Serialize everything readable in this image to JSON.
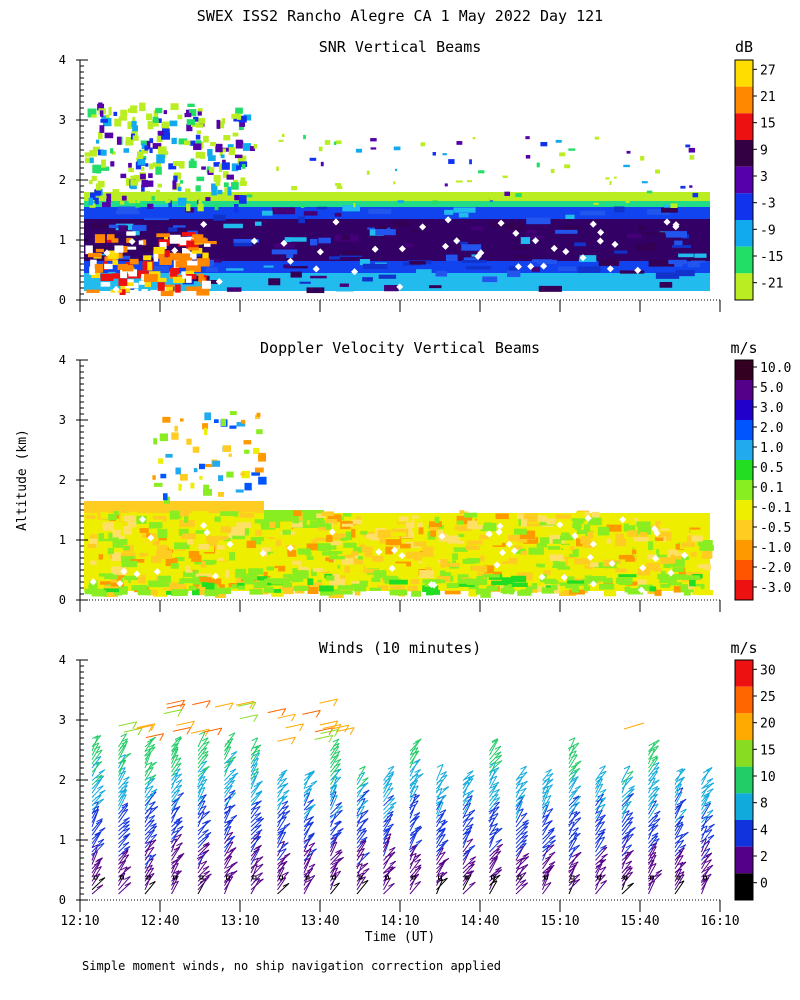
{
  "header": {
    "title": "SWEX ISS2 Rancho Alegre CA   1 May 2022 Day 121"
  },
  "shared": {
    "ylabel": "Altitude (km)",
    "xlabel": "Time (UT)",
    "footnote": "Simple moment winds, no ship navigation correction applied",
    "y_ticks": [
      "0",
      "1",
      "2",
      "3",
      "4"
    ],
    "x_ticks": [
      "12:10",
      "12:40",
      "13:10",
      "13:40",
      "14:10",
      "14:40",
      "15:10",
      "15:40",
      "16:10"
    ]
  },
  "chart_data": [
    {
      "id": "snr",
      "type": "heatmap",
      "title": "SNR Vertical Beams",
      "unit": "dB",
      "ylabel": "Altitude (km)",
      "ylim": [
        0,
        4
      ],
      "x_range": [
        "12:10",
        "16:10"
      ],
      "colorbar": {
        "ticks": [
          "27",
          "21",
          "15",
          "9",
          "3",
          "-3",
          "-9",
          "-15",
          "-21"
        ],
        "colors": [
          "#ffdd00",
          "#ff8800",
          "#ee1111",
          "#330044",
          "#5500aa",
          "#1133ee",
          "#11aaee",
          "#22dd66",
          "#bbee22"
        ]
      },
      "layers": [
        {
          "from_km": 0.15,
          "to_km": 0.45,
          "value_db": -9,
          "color": "#22bbee"
        },
        {
          "from_km": 0.45,
          "to_km": 0.65,
          "value_db": -3,
          "color": "#1144ee"
        },
        {
          "from_km": 0.65,
          "to_km": 1.35,
          "value_db": 5,
          "color": "#330066"
        },
        {
          "from_km": 1.35,
          "to_km": 1.55,
          "value_db": -3,
          "color": "#1144ee"
        },
        {
          "from_km": 1.55,
          "to_km": 1.65,
          "value_db": -12,
          "color": "#22dd88"
        },
        {
          "from_km": 1.65,
          "to_km": 1.8,
          "value_db": -21,
          "color": "#bbee22"
        }
      ]
    },
    {
      "id": "doppler",
      "type": "heatmap",
      "title": "Doppler Velocity Vertical Beams",
      "unit": "m/s",
      "ylabel": "Altitude (km)",
      "ylim": [
        0,
        4
      ],
      "x_range": [
        "12:10",
        "16:10"
      ],
      "colorbar": {
        "ticks": [
          "10.0",
          "5.0",
          "3.0",
          "2.0",
          "1.0",
          "0.5",
          "0.1",
          "-0.1",
          "-0.5",
          "-1.0",
          "-2.0",
          "-3.0"
        ],
        "colors": [
          "#330022",
          "#550088",
          "#2200cc",
          "#0055ff",
          "#22aaee",
          "#22dd22",
          "#88ee22",
          "#eeee00",
          "#ffcc22",
          "#ff9900",
          "#ff5500",
          "#ee1111"
        ]
      }
    },
    {
      "id": "winds",
      "type": "wind_barbs",
      "title": "Winds (10 minutes)",
      "unit": "m/s",
      "ylabel": "Altitude (km)",
      "xlabel": "Time (UT)",
      "ylim": [
        0,
        4
      ],
      "x_range": [
        "12:10",
        "16:10"
      ],
      "colorbar": {
        "ticks": [
          "30",
          "25",
          "20",
          "15",
          "10",
          "8",
          "4",
          "2",
          "0"
        ],
        "colors": [
          "#ee1111",
          "#ff6600",
          "#ffaa00",
          "#88dd22",
          "#22cc66",
          "#11aadd",
          "#1133dd",
          "#550088",
          "#000000"
        ]
      }
    }
  ]
}
